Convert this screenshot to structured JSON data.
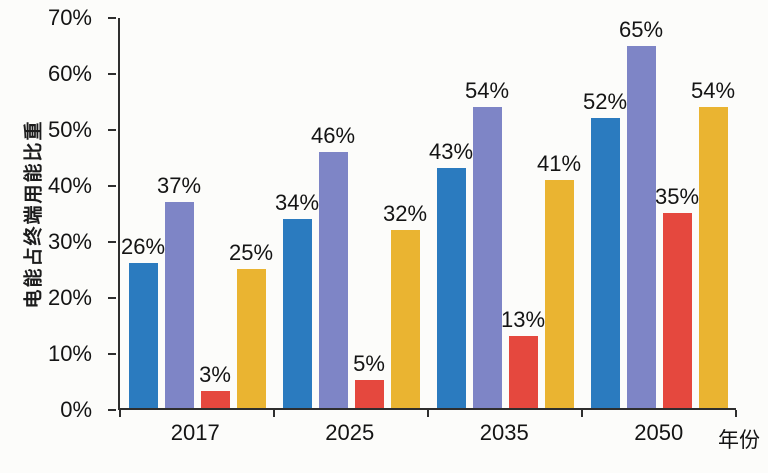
{
  "chart_data": {
    "type": "bar",
    "title": "",
    "ylabel": "电能占终端用能比重",
    "xlabel": "年份",
    "categories": [
      "2017",
      "2025",
      "2035",
      "2050"
    ],
    "series": [
      {
        "name": "blue",
        "color": "#2b7bbf",
        "values": [
          26,
          34,
          43,
          52
        ]
      },
      {
        "name": "purple",
        "color": "#7e85c6",
        "values": [
          37,
          46,
          54,
          65
        ]
      },
      {
        "name": "red",
        "color": "#e5483e",
        "values": [
          3,
          5,
          13,
          35
        ]
      },
      {
        "name": "yellow",
        "color": "#eab431",
        "values": [
          25,
          32,
          41,
          54
        ]
      }
    ],
    "ylim": [
      0,
      70
    ],
    "ytick_step": 10,
    "ytick_suffix": "%",
    "label_suffix": "%",
    "grid": "off",
    "legend": "none",
    "axis_color": "#2e2e2e",
    "background_color": "#fcfcfa"
  }
}
